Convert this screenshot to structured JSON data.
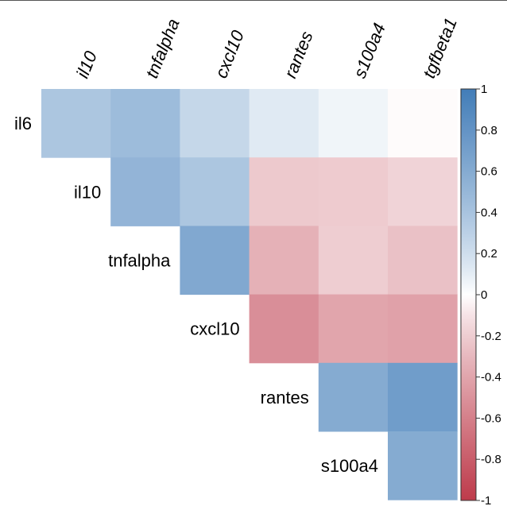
{
  "chart_data": {
    "type": "heatmap",
    "title": "",
    "columns": [
      "il10",
      "tnfalpha",
      "cxcl10",
      "rantes",
      "s100a4",
      "tgfbeta1"
    ],
    "rows": [
      "il6",
      "il10",
      "tnfalpha",
      "cxcl10",
      "rantes",
      "s100a4"
    ],
    "values": [
      [
        0.38,
        0.46,
        0.25,
        0.12,
        0.05,
        -0.01
      ],
      [
        null,
        0.52,
        0.38,
        -0.22,
        -0.21,
        -0.17
      ],
      [
        null,
        null,
        0.62,
        -0.34,
        -0.2,
        -0.26
      ],
      [
        null,
        null,
        null,
        -0.52,
        -0.4,
        -0.42
      ],
      [
        null,
        null,
        null,
        null,
        0.6,
        0.72
      ],
      [
        null,
        null,
        null,
        null,
        null,
        0.6
      ]
    ],
    "legend": {
      "position": "right",
      "range": [
        -1,
        1
      ],
      "ticks": [
        1,
        0.8,
        0.6,
        0.4,
        0.2,
        0,
        -0.2,
        -0.4,
        -0.6,
        -0.8,
        -1
      ],
      "tick_labels": [
        "1",
        "0.8",
        "0.6",
        "0.4",
        "0.2",
        "0",
        "-0.2",
        "-0.4",
        "-0.6",
        "-0.8",
        "-1"
      ],
      "colors": {
        "high": "#2166ac",
        "mid": "#ffffff",
        "low": "#b2182b"
      }
    }
  }
}
